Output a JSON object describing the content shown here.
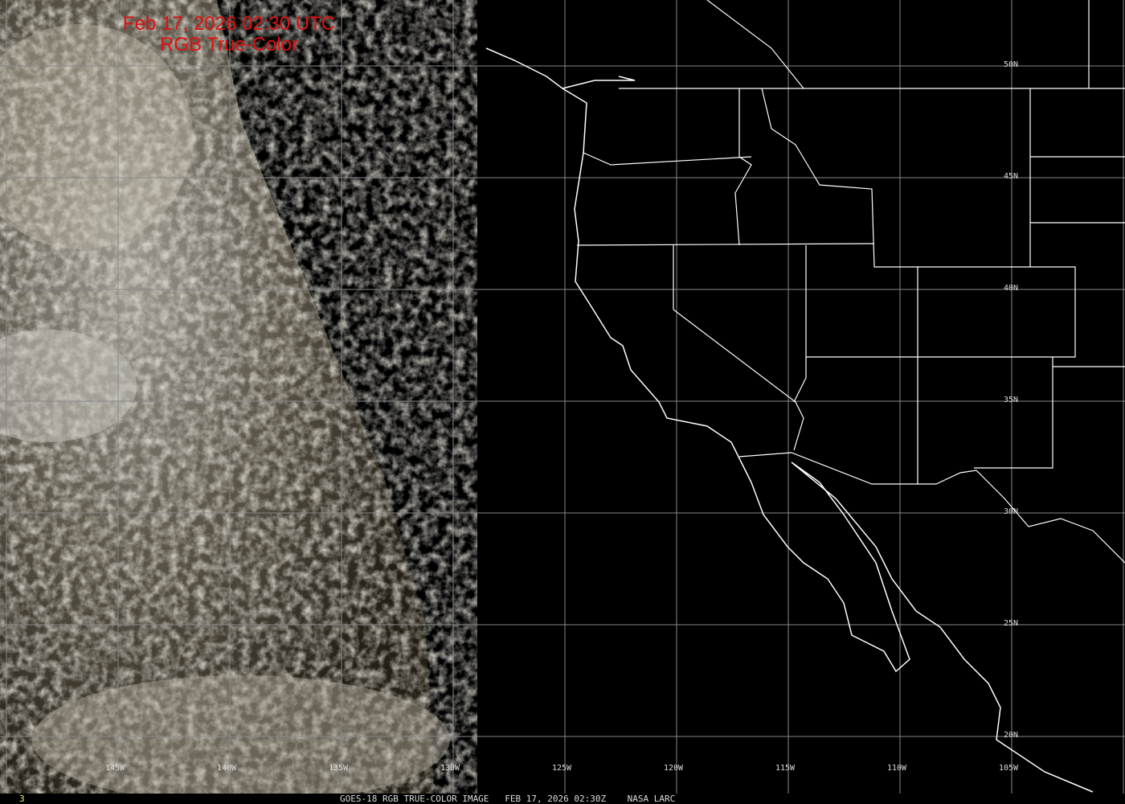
{
  "title": {
    "line1": "Feb 17, 2026 02:30 UTC",
    "line2": "RGB True-Color"
  },
  "lat_labels": [
    "50N",
    "45N",
    "40N",
    "35N",
    "30N",
    "25N",
    "20N"
  ],
  "lon_labels": [
    "145W",
    "140W",
    "135W",
    "130W",
    "125W",
    "120W",
    "115W",
    "110W",
    "105W"
  ],
  "footer": {
    "frame": "3",
    "caption": "GOES-18 RGB TRUE-COLOR IMAGE   FEB 17, 2026 02:30Z    NASA LARC"
  },
  "colors": {
    "title": "#e01010",
    "grid": "#888888",
    "coast": "#ffffff"
  }
}
